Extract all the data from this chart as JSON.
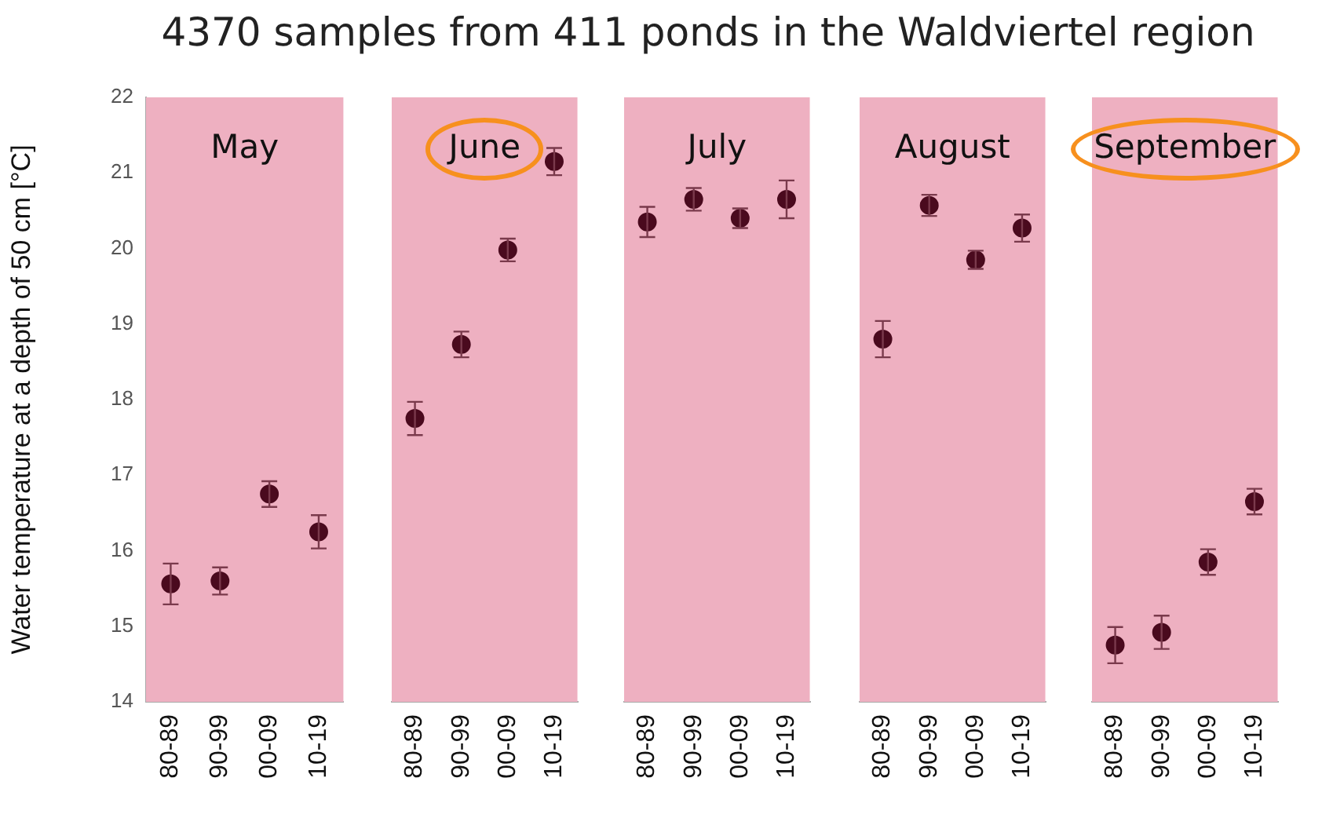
{
  "chart_data": [
    {
      "type": "scatter",
      "title": "May",
      "annotations": [
        "4370 samples from 411 ponds in the Waldviertel region"
      ],
      "ylabel": "Water temperature at a depth of 50 cm [°C]",
      "categories": [
        "80-89",
        "90-99",
        "00-09",
        "10-19"
      ],
      "values": [
        15.56,
        15.6,
        16.75,
        16.25
      ],
      "errors": [
        0.27,
        0.18,
        0.17,
        0.22
      ],
      "color": "#4a0a1e",
      "marker": "circle",
      "ylim": [
        14,
        22
      ],
      "yticks": [
        14,
        15,
        16,
        17,
        18,
        19,
        20,
        21,
        22
      ]
    },
    {
      "type": "scatter",
      "title": "June",
      "categories": [
        "80-89",
        "90-99",
        "00-09",
        "10-19"
      ],
      "values": [
        17.75,
        18.73,
        19.98,
        21.15
      ],
      "errors": [
        0.22,
        0.17,
        0.15,
        0.18
      ],
      "color": "#4a0a1e",
      "marker": "circle",
      "ylim": [
        14,
        22
      ],
      "yticks": [
        14,
        15,
        16,
        17,
        18,
        19,
        20,
        21,
        22
      ],
      "tick_labels": "x"
    },
    {
      "type": "scatter",
      "title": "July",
      "categories": [
        "80-89",
        "90-99",
        "00-09",
        "10-19"
      ],
      "values": [
        20.35,
        20.65,
        20.4,
        20.65
      ],
      "errors": [
        0.2,
        0.15,
        0.13,
        0.25
      ],
      "color": "#4a0a1e",
      "marker": "circle",
      "ylim": [
        14,
        22
      ],
      "yticks": [
        14,
        15,
        16,
        17,
        18,
        19,
        20,
        21,
        22
      ],
      "tick_labels": "x"
    },
    {
      "type": "scatter",
      "title": "August",
      "categories": [
        "80-89",
        "90-99",
        "00-09",
        "10-19"
      ],
      "values": [
        18.8,
        20.57,
        19.85,
        20.27
      ],
      "errors": [
        0.24,
        0.14,
        0.12,
        0.18
      ],
      "color": "#4a0a1e",
      "marker": "circle",
      "ylim": [
        14,
        22
      ],
      "yticks": [
        14,
        15,
        16,
        17,
        18,
        19,
        20,
        21,
        22
      ],
      "tick_labels": "x"
    },
    {
      "type": "scatter",
      "title": "September",
      "categories": [
        "80-89",
        "90-99",
        "00-09",
        "10-19"
      ],
      "values": [
        14.75,
        14.92,
        15.85,
        16.65
      ],
      "errors": [
        0.24,
        0.22,
        0.17,
        0.17
      ],
      "color": "#4a0a1e",
      "marker": "circle",
      "ylim": [
        14,
        22
      ],
      "yticks": [
        14,
        15,
        16,
        17,
        18,
        19,
        20,
        21,
        22
      ],
      "tick_labels": "x"
    }
  ]
}
